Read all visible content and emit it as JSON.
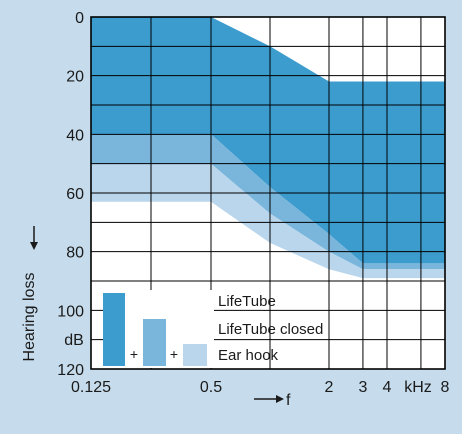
{
  "chart_data": {
    "type": "area",
    "x_scale": "log",
    "x_ticks": [
      "0.125",
      "0.5",
      "2",
      "3",
      "4",
      "kHz",
      "8"
    ],
    "x_tick_values": [
      0.125,
      0.5,
      2,
      3,
      4,
      null,
      8
    ],
    "xlabel": "f",
    "y_ticks": [
      "0",
      "20",
      "40",
      "60",
      "80",
      "100",
      "120"
    ],
    "y_tick_values": [
      0,
      20,
      40,
      60,
      80,
      100,
      120
    ],
    "y_unit_label": "dB",
    "ylabel": "Hearing loss",
    "ylim": [
      0,
      120
    ],
    "y_inverted": true,
    "grid": true,
    "series": [
      {
        "name": "LifeTube",
        "color": "#3d9cce",
        "upper": [
          [
            0.125,
            0
          ],
          [
            0.5,
            0
          ],
          [
            1,
            10
          ],
          [
            2,
            22
          ],
          [
            8,
            22
          ]
        ],
        "lower": [
          [
            0.125,
            40
          ],
          [
            0.5,
            40
          ],
          [
            1,
            58
          ],
          [
            2,
            74
          ],
          [
            3,
            84
          ],
          [
            8,
            84
          ]
        ]
      },
      {
        "name": "LifeTube closed",
        "color": "#7ab6dc",
        "upper": [
          [
            0.125,
            40
          ],
          [
            0.5,
            40
          ],
          [
            1,
            58
          ],
          [
            2,
            74
          ],
          [
            3,
            84
          ],
          [
            8,
            84
          ]
        ],
        "lower": [
          [
            0.125,
            50
          ],
          [
            0.5,
            50
          ],
          [
            1,
            67
          ],
          [
            2,
            80
          ],
          [
            3,
            86
          ],
          [
            8,
            86
          ]
        ]
      },
      {
        "name": "Ear hook",
        "color": "#b9d6ec",
        "upper": [
          [
            0.125,
            50
          ],
          [
            0.5,
            50
          ],
          [
            1,
            67
          ],
          [
            2,
            80
          ],
          [
            3,
            86
          ],
          [
            8,
            86
          ]
        ],
        "lower": [
          [
            0.125,
            63
          ],
          [
            0.5,
            63
          ],
          [
            1,
            77
          ],
          [
            2,
            86
          ],
          [
            3,
            89
          ],
          [
            8,
            89
          ]
        ]
      }
    ],
    "legend": {
      "placement": "bottom-left",
      "entries": [
        "LifeTube",
        "LifeTube closed",
        "Ear hook"
      ],
      "combine_sign": "+"
    },
    "colors": {
      "background": "#c6dcec",
      "plot_bg": "#ffffff",
      "grid": "#000000"
    }
  }
}
